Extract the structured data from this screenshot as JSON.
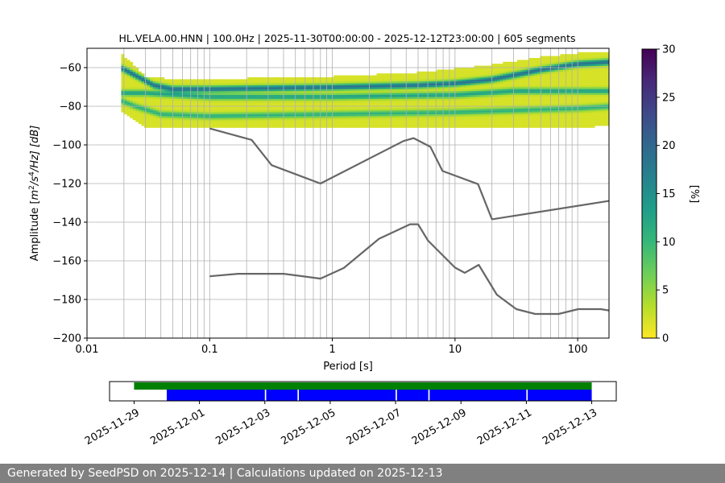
{
  "chart_data": [
    {
      "type": "heatmap",
      "title": "HL.VELA.00.HNN | 100.0Hz | 2025-11-30T00:00:00 - 2025-12-12T23:00:00 | 605 segments",
      "xlabel": "Period [s]",
      "ylabel_parts": {
        "prefix": "Amplitude [",
        "m": "m",
        "exp2": "2",
        "s": "/s",
        "exp4": "4",
        "hz": "/Hz] [dB]"
      },
      "x_scale": "log",
      "xlim": [
        0.01,
        180
      ],
      "ylim": [
        -200,
        -50
      ],
      "x_ticks": [
        {
          "value": 0.01,
          "label": "0.01"
        },
        {
          "value": 0.1,
          "label": "0.1"
        },
        {
          "value": 1,
          "label": "1"
        },
        {
          "value": 10,
          "label": "10"
        },
        {
          "value": 100,
          "label": "100"
        }
      ],
      "y_ticks": [
        {
          "value": -60,
          "label": "−60"
        },
        {
          "value": -80,
          "label": "−80"
        },
        {
          "value": -100,
          "label": "−100"
        },
        {
          "value": -120,
          "label": "−120"
        },
        {
          "value": -140,
          "label": "−140"
        },
        {
          "value": -160,
          "label": "−160"
        },
        {
          "value": -180,
          "label": "−180"
        },
        {
          "value": -200,
          "label": "−200"
        }
      ],
      "grid": true,
      "grid_x_values": [
        0.02,
        0.03,
        0.04,
        0.05,
        0.06,
        0.07,
        0.08,
        0.09,
        0.1,
        0.2,
        0.3,
        0.4,
        0.5,
        0.6,
        0.7,
        0.8,
        0.9,
        1,
        2,
        3,
        4,
        5,
        6,
        7,
        8,
        9,
        10,
        20,
        30,
        40,
        50,
        60,
        70,
        80,
        90,
        100
      ],
      "colorbar": {
        "label": "[%]",
        "range": [
          0,
          30
        ],
        "ticks": [
          {
            "value": 0,
            "label": "0"
          },
          {
            "value": 5,
            "label": "5"
          },
          {
            "value": 10,
            "label": "10"
          },
          {
            "value": 15,
            "label": "15"
          },
          {
            "value": 20,
            "label": "20"
          },
          {
            "value": 25,
            "label": "25"
          },
          {
            "value": 30,
            "label": "30"
          }
        ],
        "colormap": [
          "#440154",
          "#482878",
          "#3e4989",
          "#31688e",
          "#26828e",
          "#1f9e89",
          "#35b779",
          "#6ece58",
          "#b5de2b",
          "#fde725"
        ]
      },
      "density": {
        "x_start": 0.019,
        "x_end": 180,
        "upper_edge": [
          [
            0.019,
            -53
          ],
          [
            0.03,
            -65
          ],
          [
            0.06,
            -67
          ],
          [
            0.2,
            -66
          ],
          [
            1,
            -65
          ],
          [
            5,
            -63
          ],
          [
            20,
            -59
          ],
          [
            50,
            -55
          ],
          [
            100,
            -53
          ],
          [
            180,
            -52
          ]
        ],
        "lower_edge": [
          [
            0.019,
            -82
          ],
          [
            0.03,
            -91
          ],
          [
            1,
            -91
          ],
          [
            10,
            -91
          ],
          [
            100,
            -91
          ],
          [
            180,
            -89
          ]
        ],
        "ridges": [
          {
            "points": [
              [
                0.019,
                -60
              ],
              [
                0.025,
                -64
              ],
              [
                0.035,
                -69
              ],
              [
                0.05,
                -71
              ],
              [
                0.1,
                -71
              ],
              [
                1,
                -70
              ],
              [
                5,
                -69
              ],
              [
                10,
                -68
              ],
              [
                20,
                -66
              ],
              [
                50,
                -61
              ],
              [
                100,
                -58
              ],
              [
                180,
                -57
              ]
            ],
            "percent": 17
          },
          {
            "points": [
              [
                0.019,
                -77
              ],
              [
                0.025,
                -80
              ],
              [
                0.04,
                -84
              ],
              [
                0.1,
                -85
              ],
              [
                1,
                -84
              ],
              [
                10,
                -83
              ],
              [
                100,
                -81
              ],
              [
                180,
                -80
              ]
            ],
            "percent": 9
          },
          {
            "points": [
              [
                0.03,
                -73
              ],
              [
                0.1,
                -75
              ],
              [
                1,
                -75
              ],
              [
                10,
                -74
              ],
              [
                30,
                -72
              ]
            ],
            "percent": 11
          }
        ]
      },
      "noise_models": [
        {
          "points": [
            [
              0.1,
              -91.5
            ],
            [
              0.22,
              -97.4
            ],
            [
              0.32,
              -110.5
            ],
            [
              0.8,
              -120
            ],
            [
              3.8,
              -98
            ],
            [
              4.6,
              -96.5
            ],
            [
              6.3,
              -101
            ],
            [
              7.9,
              -113.5
            ],
            [
              15.4,
              -120.3
            ],
            [
              20,
              -138.5
            ],
            [
              180,
              -129
            ]
          ]
        },
        {
          "points": [
            [
              0.1,
              -168
            ],
            [
              0.17,
              -166.7
            ],
            [
              0.4,
              -166.7
            ],
            [
              0.8,
              -169.2
            ],
            [
              1.24,
              -163.7
            ],
            [
              2.4,
              -148.6
            ],
            [
              4.3,
              -141.1
            ],
            [
              5.0,
              -141.1
            ],
            [
              6.0,
              -149.4
            ],
            [
              10,
              -163.5
            ],
            [
              12,
              -166.2
            ],
            [
              15.6,
              -162.1
            ],
            [
              21.9,
              -177.5
            ],
            [
              31.6,
              -185
            ],
            [
              45,
              -187.5
            ],
            [
              70,
              -187.5
            ],
            [
              101,
              -185
            ],
            [
              154,
              -185
            ],
            [
              180,
              -185.7
            ]
          ]
        }
      ]
    },
    {
      "type": "timeline",
      "date_ticks": [
        {
          "date": "2025-11-29",
          "label": "2025-11-29"
        },
        {
          "date": "2025-12-01",
          "label": "2025-12-01"
        },
        {
          "date": "2025-12-03",
          "label": "2025-12-03"
        },
        {
          "date": "2025-12-05",
          "label": "2025-12-05"
        },
        {
          "date": "2025-12-07",
          "label": "2025-12-07"
        },
        {
          "date": "2025-12-09",
          "label": "2025-12-09"
        },
        {
          "date": "2025-12-11",
          "label": "2025-12-11"
        },
        {
          "date": "2025-12-13",
          "label": "2025-12-13"
        }
      ],
      "xlim": [
        "2025-11-28T06:00",
        "2025-12-13T18:00"
      ],
      "green_bar": {
        "start": "2025-11-29T00:00",
        "end": "2025-12-13T00:00",
        "color": "#008000"
      },
      "blue_segments": [
        {
          "start": "2025-11-30T00:00",
          "end": "2025-12-03T00:00"
        },
        {
          "start": "2025-12-03T01:00",
          "end": "2025-12-04T00:00"
        },
        {
          "start": "2025-12-04T01:00",
          "end": "2025-12-07T00:00"
        },
        {
          "start": "2025-12-07T01:00",
          "end": "2025-12-08T00:00"
        },
        {
          "start": "2025-12-08T01:00",
          "end": "2025-12-11T00:00"
        },
        {
          "start": "2025-12-11T01:00",
          "end": "2025-12-13T00:00"
        }
      ],
      "blue_color": "#0000ff"
    }
  ],
  "footer": {
    "text": "Generated by SeedPSD on 2025-12-14 | Calculations updated on 2025-12-13"
  }
}
